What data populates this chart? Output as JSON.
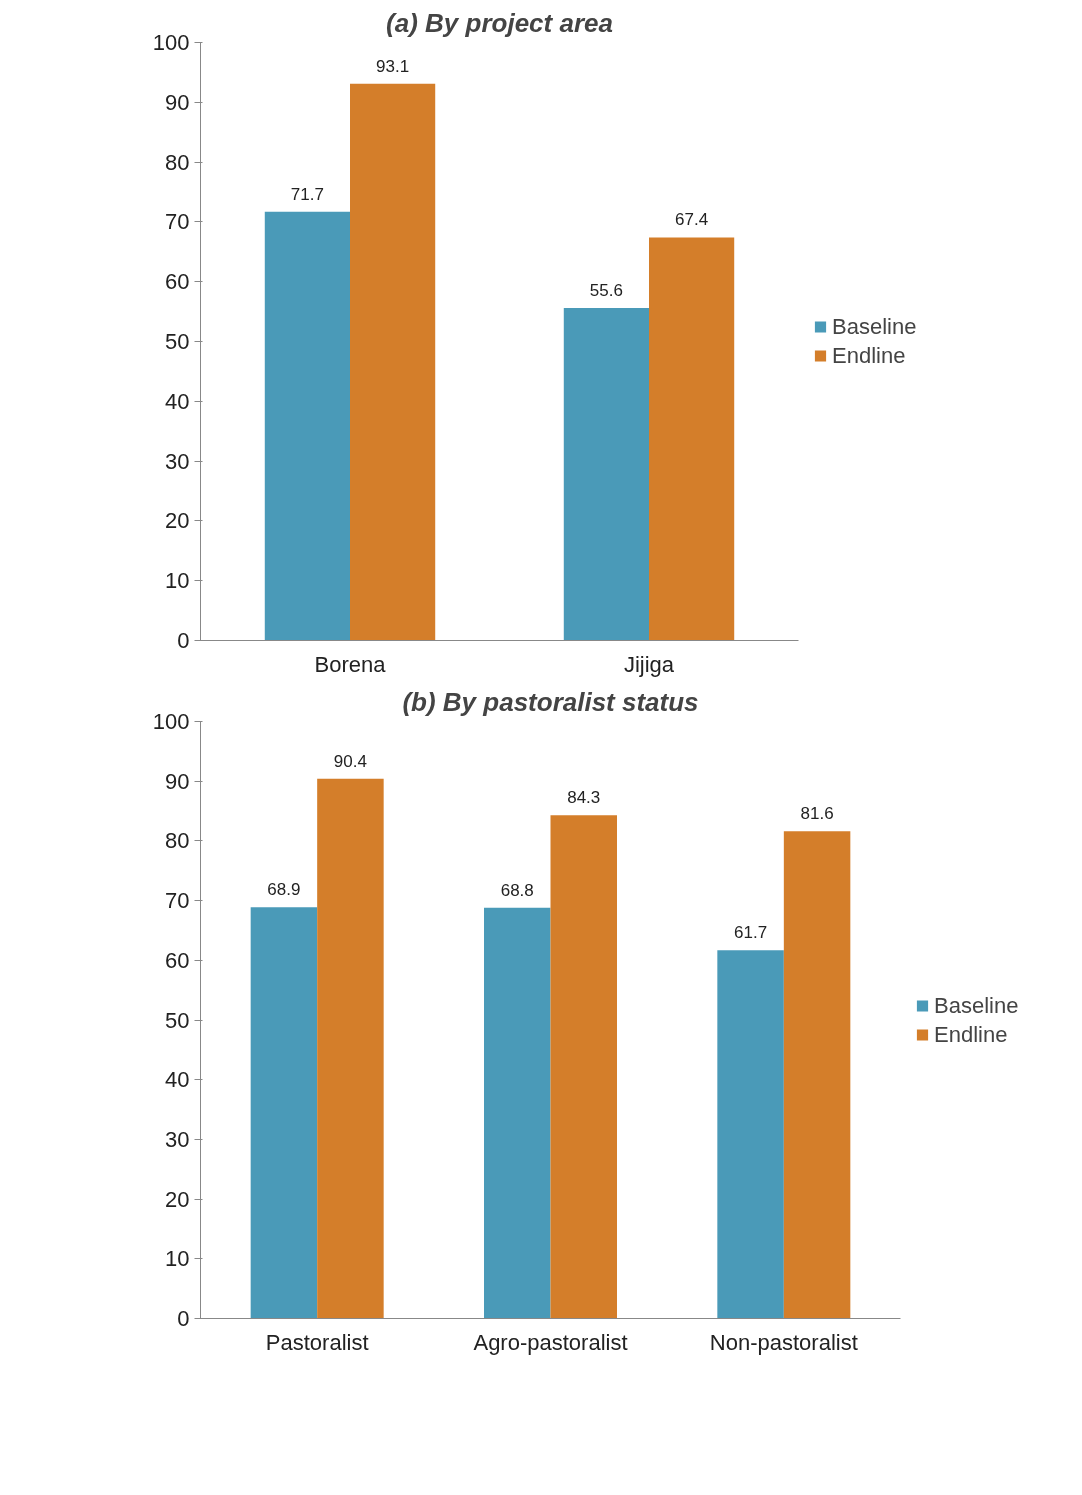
{
  "chart_data": [
    {
      "type": "bar",
      "title": "(a) By project area",
      "categories": [
        "Borena",
        "Jijiga"
      ],
      "series": [
        {
          "name": "Baseline",
          "color": "#4a9ab8",
          "values": [
            71.7,
            55.6
          ]
        },
        {
          "name": "Endline",
          "color": "#d47e2a",
          "values": [
            93.1,
            67.4
          ]
        }
      ],
      "ylim": [
        0,
        100
      ],
      "yticks": [
        0,
        10,
        20,
        30,
        40,
        50,
        60,
        70,
        80,
        90,
        100
      ],
      "grid": false,
      "legend": "right",
      "data_labels": true
    },
    {
      "type": "bar",
      "title": "(b) By pastoralist status",
      "categories": [
        "Pastoralist",
        "Agro-pastoralist",
        "Non-pastoralist"
      ],
      "series": [
        {
          "name": "Baseline",
          "color": "#4a9ab8",
          "values": [
            68.9,
            68.8,
            61.7
          ]
        },
        {
          "name": "Endline",
          "color": "#d47e2a",
          "values": [
            90.4,
            84.3,
            81.6
          ]
        }
      ],
      "ylim": [
        0,
        100
      ],
      "yticks": [
        0,
        10,
        20,
        30,
        40,
        50,
        60,
        70,
        80,
        90,
        100
      ],
      "grid": false,
      "legend": "right",
      "data_labels": true
    }
  ]
}
